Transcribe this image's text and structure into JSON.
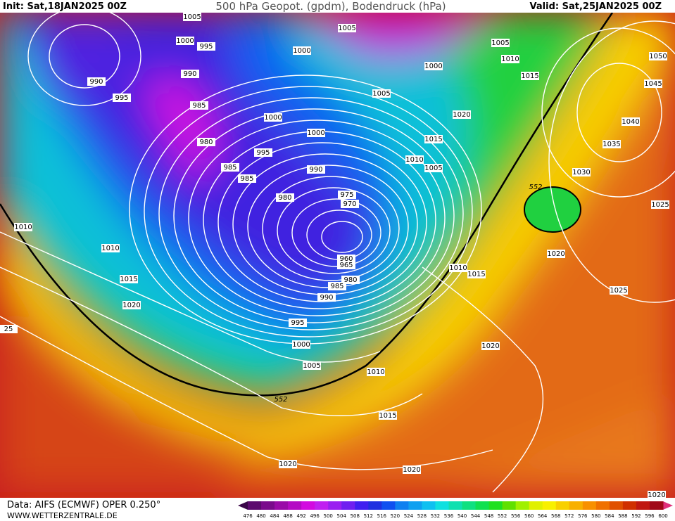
{
  "header": {
    "init": "Init: Sat,18JAN2025 00Z",
    "title": "500 hPa Geopot. (gpdm), Bodendruck (hPa)",
    "valid": "Valid: Sat,25JAN2025 00Z"
  },
  "isobar_labels": [
    "1005",
    "1000",
    "995",
    "990",
    "990",
    "995",
    "985",
    "980",
    "985",
    "985",
    "1000",
    "1005",
    "1000",
    "1000",
    "995",
    "990",
    "980",
    "975",
    "970",
    "960",
    "965",
    "980",
    "985",
    "990",
    "995",
    "1000",
    "1005",
    "1010",
    "1015",
    "1020",
    "1020",
    "1020",
    "1010",
    "1015",
    "1020",
    "1025",
    "1025",
    "1030",
    "1035",
    "1040",
    "1045",
    "1050",
    "1005",
    "1000",
    "1005",
    "1010",
    "1015",
    "1020",
    "1015",
    "1010",
    "1005",
    "1010",
    "1010",
    "1015",
    "1020",
    "1020",
    "25"
  ],
  "contour_labels": [
    "552",
    "552"
  ],
  "colorbar": {
    "ticks": [
      476,
      480,
      484,
      488,
      492,
      496,
      500,
      504,
      508,
      512,
      516,
      520,
      524,
      528,
      532,
      536,
      540,
      544,
      548,
      552,
      556,
      560,
      564,
      568,
      572,
      576,
      580,
      584,
      588,
      592,
      596,
      600
    ],
    "colors": [
      "#5c0a6e",
      "#7a0a8c",
      "#9a0aa8",
      "#b40ac4",
      "#d20ae0",
      "#c020f0",
      "#9a20f0",
      "#7020f0",
      "#4020f0",
      "#2030e0",
      "#1050f0",
      "#1080f0",
      "#10a0f0",
      "#10c0f0",
      "#10e0e0",
      "#10e0b0",
      "#10e080",
      "#10e050",
      "#20e020",
      "#60e000",
      "#a0f000",
      "#e0f000",
      "#f8f000",
      "#f8d000",
      "#f8b000",
      "#f89000",
      "#f07000",
      "#e05000",
      "#d03000",
      "#c01810",
      "#a00818"
    ],
    "under_color": "#3a0648",
    "over_color": "#e0307a"
  },
  "footer": {
    "data": "Data: AIFS (ECMWF) OPER 0.250°",
    "site": "WWW.WETTERZENTRALE.DE"
  }
}
